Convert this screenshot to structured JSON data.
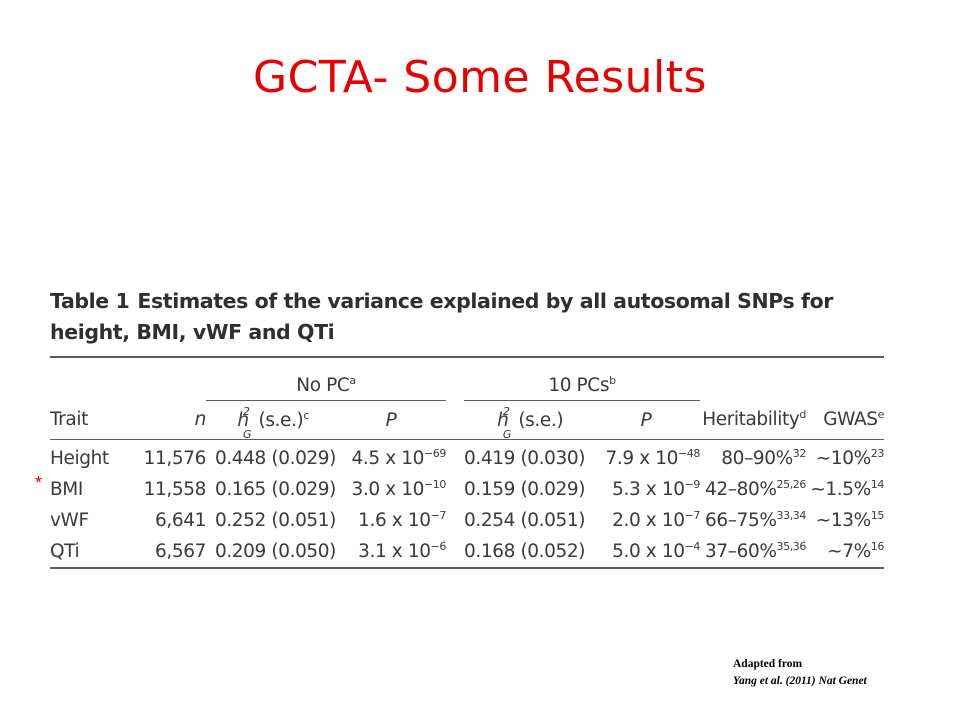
{
  "slide": {
    "title": "GCTA- Some Results",
    "marker": "*",
    "attribution": {
      "line1": "Adapted from",
      "line2": "Yang et al. (2011) Nat Genet"
    }
  },
  "table": {
    "label": "Table 1",
    "caption": "Estimates of the variance explained by all autosomal SNPs for height, BMI, vWF and QTi",
    "group_headers": {
      "nopc": "No PC",
      "nopc_sup": "a",
      "tenpc": "10 PCs",
      "tenpc_sup": "b"
    },
    "col_headers": {
      "trait": "Trait",
      "n": "n",
      "h_base": "h",
      "h_sup": "2",
      "h_sub": "G",
      "se_c": "(s.e.)",
      "se_c_sup": "c",
      "p1": "P",
      "se": "(s.e.)",
      "p2": "P",
      "heritability": "Heritability",
      "heritability_sup": "d",
      "gwas": "GWAS",
      "gwas_sup": "e"
    },
    "rows": [
      {
        "trait": "Height",
        "n": "11,576",
        "h1": "0.448 (0.029)",
        "p1_base": "4.5 x 10",
        "p1_exp": "−69",
        "h2": "0.419 (0.030)",
        "p2_base": "7.9 x 10",
        "p2_exp": "−48",
        "herit": "80–90%",
        "herit_ref": "32",
        "gwas": "~10%",
        "gwas_ref": "23"
      },
      {
        "trait": "BMI",
        "n": "11,558",
        "h1": "0.165 (0.029)",
        "p1_base": "3.0 x 10",
        "p1_exp": "−10",
        "h2": "0.159 (0.029)",
        "p2_base": "5.3 x 10",
        "p2_exp": "−9",
        "herit": "42–80%",
        "herit_ref": "25,26",
        "gwas": "~1.5%",
        "gwas_ref": "14"
      },
      {
        "trait": "vWF",
        "n": "6,641",
        "h1": "0.252 (0.051)",
        "p1_base": "1.6 x 10",
        "p1_exp": "−7",
        "h2": "0.254 (0.051)",
        "p2_base": "2.0 x 10",
        "p2_exp": "−7",
        "herit": "66–75%",
        "herit_ref": "33,34",
        "gwas": "~13%",
        "gwas_ref": "15"
      },
      {
        "trait": "QTi",
        "n": "6,567",
        "h1": "0.209 (0.050)",
        "p1_base": "3.1 x 10",
        "p1_exp": "−6",
        "h2": "0.168 (0.052)",
        "p2_base": "5.0 x 10",
        "p2_exp": "−4",
        "herit": "37–60%",
        "herit_ref": "35,36",
        "gwas": "~7%",
        "gwas_ref": "16"
      }
    ]
  },
  "colors": {
    "title": "#e60000",
    "marker": "#e60000",
    "table_text": "#3a3a3a",
    "rules": "#5a5a5a"
  }
}
